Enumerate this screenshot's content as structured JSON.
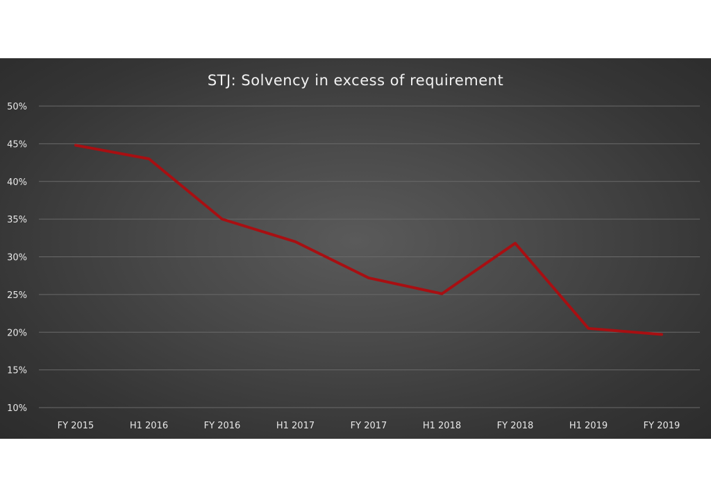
{
  "chart_data": {
    "type": "line",
    "title": "STJ: Solvency in excess of requirement",
    "xlabel": "",
    "ylabel": "",
    "categories": [
      "FY 2015",
      "H1 2016",
      "FY 2016",
      "H1 2017",
      "FY 2017",
      "H1 2018",
      "FY 2018",
      "H1 2019",
      "FY 2019"
    ],
    "series": [
      {
        "values": [
          44.8,
          43.0,
          35.0,
          32.0,
          27.2,
          25.1,
          31.8,
          20.5,
          19.7
        ]
      }
    ],
    "ylim": [
      10,
      50
    ],
    "y_ticks": [
      "10%",
      "15%",
      "20%",
      "25%",
      "30%",
      "35%",
      "40%",
      "45%",
      "50%"
    ],
    "y_tick_values": [
      10,
      15,
      20,
      25,
      30,
      35,
      40,
      45,
      50
    ],
    "grid": true,
    "legend": "none",
    "colors": {
      "series": "#a80f12",
      "background": "#4a4a4a",
      "text": "#e8e8e8"
    }
  }
}
